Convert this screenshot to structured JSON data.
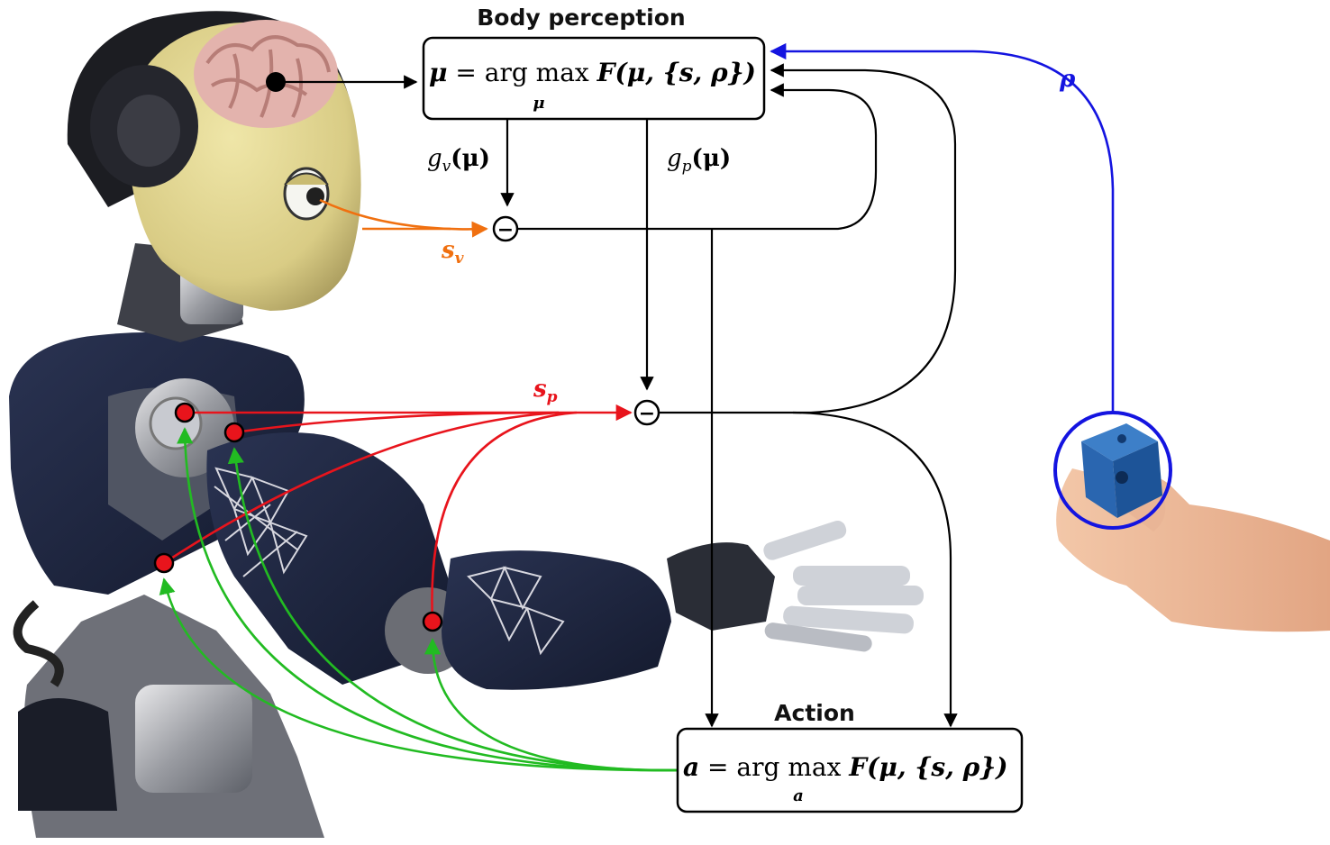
{
  "body_perception": {
    "title": "Body perception",
    "formula_lhs": "μ",
    "formula_op": " = arg max ",
    "formula_rhs": "F(μ, {s, ρ})",
    "formula_under": "μ"
  },
  "action": {
    "title": "Action",
    "formula_lhs": "a",
    "formula_op": " = arg max ",
    "formula_rhs": "F(μ, {s, ρ})",
    "formula_under": "a"
  },
  "labels": {
    "gv": "g",
    "gv_sub": "v",
    "gv_arg": "(μ)",
    "gp": "g",
    "gp_sub": "p",
    "gp_arg": "(μ)",
    "sv": "s",
    "sv_sub": "v",
    "sp": "s",
    "sp_sub": "p",
    "rho": "ρ",
    "minus": "−"
  },
  "colors": {
    "visual": "#f07010",
    "proprio": "#e8141c",
    "action": "#22bb22",
    "object": "#1414e0",
    "flow": "#000000"
  }
}
